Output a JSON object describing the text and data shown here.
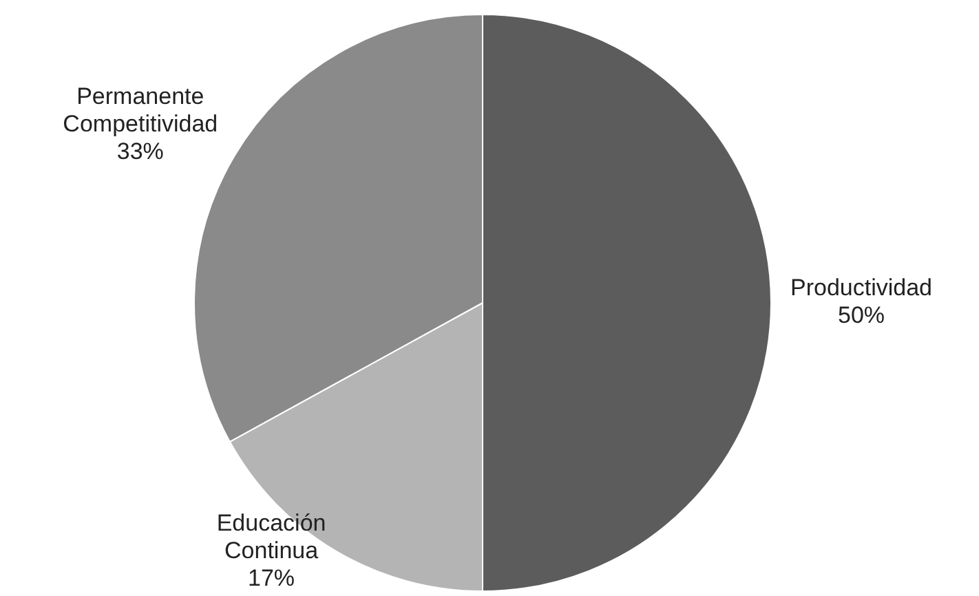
{
  "chart_data": {
    "type": "pie",
    "categories": [
      "Productividad",
      "Educación Continua",
      "Permanente Competitividad"
    ],
    "values": [
      50,
      17,
      33
    ],
    "value_labels": [
      "50%",
      "17%",
      "33%"
    ],
    "colors": [
      "#5c5c5c",
      "#b4b4b4",
      "#8a8a8a"
    ],
    "legend": false
  }
}
